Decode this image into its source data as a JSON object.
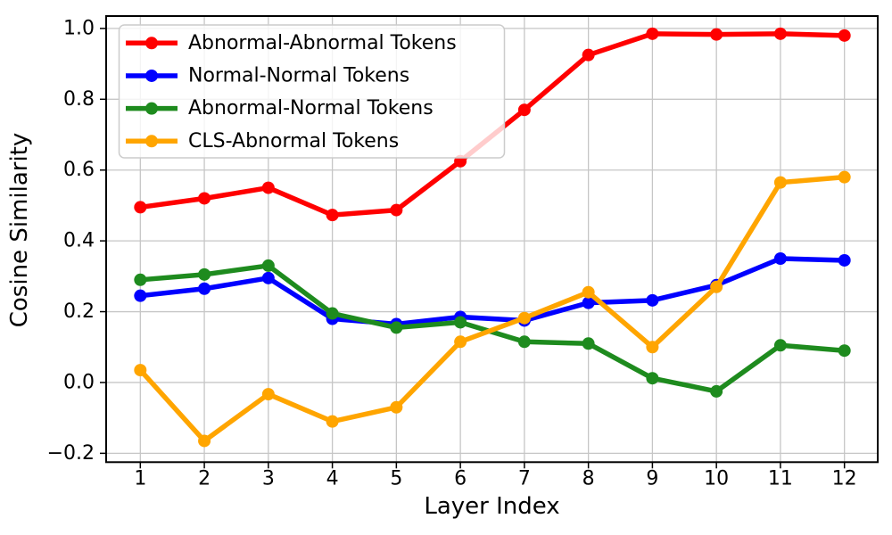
{
  "chart_data": {
    "type": "line",
    "title": "",
    "xlabel": "Layer Index",
    "ylabel": "Cosine Similarity",
    "x": [
      1,
      2,
      3,
      4,
      5,
      6,
      7,
      8,
      9,
      10,
      11,
      12
    ],
    "xticks": [
      1,
      2,
      3,
      4,
      5,
      6,
      7,
      8,
      9,
      10,
      11,
      12
    ],
    "yticks": [
      -0.2,
      0.0,
      0.2,
      0.4,
      0.6,
      0.8,
      1.0
    ],
    "xlim": [
      0.466,
      12.52
    ],
    "ylim": [
      -0.225,
      1.035
    ],
    "grid": true,
    "legend_position": "upper-left",
    "series": [
      {
        "name": "Abnormal-Abnormal Tokens",
        "color": "#ff0000",
        "values": [
          0.495,
          0.52,
          0.55,
          0.473,
          0.487,
          0.625,
          0.77,
          0.925,
          0.985,
          0.983,
          0.985,
          0.98
        ]
      },
      {
        "name": "Normal-Normal Tokens",
        "color": "#0000ff",
        "values": [
          0.245,
          0.265,
          0.295,
          0.18,
          0.165,
          0.185,
          0.175,
          0.225,
          0.232,
          0.275,
          0.35,
          0.345
        ]
      },
      {
        "name": "Abnormal-Normal Tokens",
        "color": "#1e8b1e",
        "values": [
          0.29,
          0.305,
          0.33,
          0.195,
          0.155,
          0.17,
          0.115,
          0.11,
          0.012,
          -0.025,
          0.105,
          0.09
        ]
      },
      {
        "name": "CLS-Abnormal Tokens",
        "color": "#ffa500",
        "values": [
          0.035,
          -0.165,
          -0.033,
          -0.11,
          -0.07,
          0.115,
          0.182,
          0.255,
          0.1,
          0.27,
          0.565,
          0.58
        ]
      }
    ],
    "style": {
      "grid_color": "#c6c6c6",
      "spine_color": "#000000",
      "legend_border_color": "#cccccc",
      "legend_fill": "#ffffff"
    }
  }
}
